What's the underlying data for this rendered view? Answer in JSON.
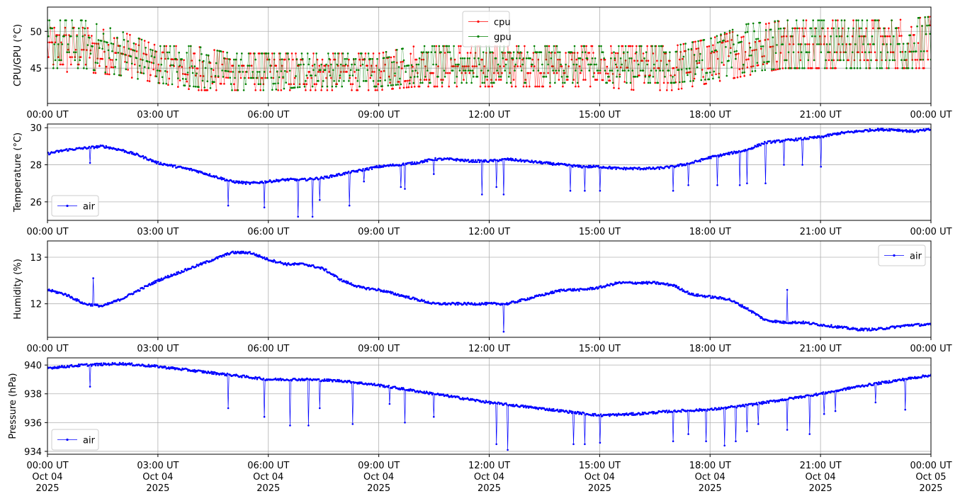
{
  "chart_data": [
    {
      "type": "line",
      "ylabel": "CPU/GPU (°C)",
      "xlim": [
        "00:00 UT",
        "00:00 UT"
      ],
      "ylim": [
        40.2,
        53.3
      ],
      "yticks": [
        45,
        50
      ],
      "grid": true,
      "legend_position": "upper center",
      "x_tick_labels": [
        "00:00 UT",
        "03:00 UT",
        "06:00 UT",
        "09:00 UT",
        "12:00 UT",
        "15:00 UT",
        "18:00 UT",
        "21:00 UT",
        "00:00 UT"
      ],
      "series": [
        {
          "name": "cpu",
          "color": "#ff0000",
          "x_hours": [
            0,
            1,
            2,
            3,
            4,
            5,
            6,
            7,
            8,
            9,
            10,
            11,
            12,
            13,
            14,
            15,
            16,
            17,
            18,
            19,
            20,
            21,
            22,
            23,
            24
          ],
          "low": [
            44.5,
            44.5,
            44.0,
            43.0,
            42.0,
            42.0,
            42.0,
            42.0,
            42.0,
            42.0,
            42.5,
            42.5,
            42.5,
            42.5,
            42.5,
            42.5,
            42.0,
            42.0,
            43.0,
            44.0,
            45.0,
            45.0,
            45.0,
            45.0,
            45.0
          ],
          "high": [
            50.5,
            50.5,
            50.0,
            48.0,
            48.0,
            47.0,
            47.0,
            47.0,
            47.0,
            47.0,
            48.0,
            48.0,
            48.0,
            48.0,
            48.0,
            48.0,
            48.0,
            48.0,
            49.0,
            50.5,
            51.5,
            51.5,
            51.5,
            51.5,
            52.0
          ]
        },
        {
          "name": "gpu",
          "color": "#008000",
          "x_hours": [
            0,
            1,
            2,
            3,
            4,
            5,
            6,
            7,
            8,
            9,
            10,
            11,
            12,
            13,
            14,
            15,
            16,
            17,
            18,
            19,
            20,
            21,
            22,
            23,
            24
          ],
          "low": [
            45.0,
            45.0,
            44.0,
            43.0,
            42.5,
            42.0,
            42.0,
            42.5,
            42.5,
            42.5,
            43.0,
            43.0,
            43.0,
            43.0,
            43.0,
            43.0,
            43.0,
            43.0,
            43.5,
            44.5,
            45.0,
            45.0,
            45.0,
            45.0,
            45.0
          ],
          "high": [
            51.5,
            51.5,
            50.0,
            48.0,
            48.0,
            47.0,
            47.0,
            47.0,
            47.0,
            47.0,
            48.0,
            48.0,
            48.0,
            48.0,
            48.0,
            48.0,
            48.0,
            48.0,
            49.0,
            51.0,
            51.5,
            51.5,
            51.5,
            51.5,
            52.0
          ]
        }
      ]
    },
    {
      "type": "line",
      "ylabel": "Temperature (°C)",
      "ylim": [
        25.0,
        30.2
      ],
      "yticks": [
        26,
        28,
        30
      ],
      "grid": true,
      "legend_position": "lower left",
      "x_tick_labels": [
        "00:00 UT",
        "03:00 UT",
        "06:00 UT",
        "09:00 UT",
        "12:00 UT",
        "15:00 UT",
        "18:00 UT",
        "21:00 UT",
        "00:00 UT"
      ],
      "series": [
        {
          "name": "air",
          "color": "#0000ff",
          "x_hours": [
            0,
            0.5,
            1,
            1.5,
            2,
            2.5,
            3,
            3.5,
            4,
            4.5,
            5,
            5.5,
            6,
            6.5,
            7,
            7.5,
            8,
            8.5,
            9,
            9.5,
            10,
            10.5,
            11,
            11.5,
            12,
            12.5,
            13,
            13.5,
            14,
            14.5,
            15,
            15.5,
            16,
            16.5,
            17,
            17.5,
            18,
            18.5,
            19,
            19.5,
            20,
            20.5,
            21,
            21.5,
            22,
            22.5,
            23,
            23.5,
            24
          ],
          "values": [
            28.6,
            28.8,
            28.9,
            29.0,
            28.8,
            28.5,
            28.1,
            27.9,
            27.7,
            27.4,
            27.1,
            27.0,
            27.1,
            27.2,
            27.2,
            27.3,
            27.5,
            27.7,
            27.9,
            28.0,
            28.1,
            28.3,
            28.3,
            28.2,
            28.2,
            28.3,
            28.2,
            28.1,
            28.0,
            27.9,
            27.9,
            27.8,
            27.8,
            27.8,
            27.9,
            28.1,
            28.4,
            28.6,
            28.8,
            29.2,
            29.3,
            29.4,
            29.5,
            29.7,
            29.8,
            29.9,
            29.9,
            29.8,
            29.9
          ],
          "spikes_x_hours": [
            1.15,
            4.9,
            5.9,
            6.8,
            7.2,
            7.4,
            8.2,
            8.6,
            9.6,
            9.7,
            10.5,
            11.8,
            12.2,
            12.4,
            14.2,
            14.6,
            15.0,
            17.0,
            17.4,
            18.2,
            18.8,
            19.0,
            19.5,
            20.0,
            20.5,
            21.0
          ],
          "spikes_values": [
            28.1,
            25.8,
            25.7,
            25.2,
            25.2,
            26.1,
            25.8,
            27.1,
            26.8,
            26.7,
            27.5,
            26.4,
            26.8,
            26.4,
            26.6,
            26.6,
            26.6,
            26.6,
            26.9,
            26.9,
            26.9,
            27.0,
            27.0,
            28.0,
            28.0,
            27.9
          ]
        }
      ]
    },
    {
      "type": "line",
      "ylabel": "Humidity (%)",
      "ylim": [
        11.28,
        13.35
      ],
      "yticks": [
        12,
        13
      ],
      "grid": true,
      "legend_position": "upper right",
      "x_tick_labels": [
        "00:00 UT",
        "03:00 UT",
        "06:00 UT",
        "09:00 UT",
        "12:00 UT",
        "15:00 UT",
        "18:00 UT",
        "21:00 UT",
        "00:00 UT"
      ],
      "series": [
        {
          "name": "air",
          "color": "#0000ff",
          "x_hours": [
            0,
            0.5,
            1,
            1.5,
            2,
            2.5,
            3,
            3.5,
            4,
            4.5,
            5,
            5.5,
            6,
            6.5,
            7,
            7.5,
            8,
            8.5,
            9,
            9.5,
            10,
            10.5,
            11,
            11.5,
            12,
            12.5,
            13,
            13.5,
            14,
            14.5,
            15,
            15.5,
            16,
            16.5,
            17,
            17.5,
            18,
            18.5,
            19,
            19.5,
            20,
            20.5,
            21,
            21.5,
            22,
            22.5,
            23,
            23.5,
            24
          ],
          "values": [
            12.3,
            12.2,
            12.0,
            11.95,
            12.1,
            12.3,
            12.5,
            12.65,
            12.8,
            12.95,
            13.1,
            13.1,
            12.95,
            12.85,
            12.85,
            12.75,
            12.5,
            12.35,
            12.3,
            12.2,
            12.1,
            12.0,
            12.0,
            12.0,
            12.0,
            12.0,
            12.1,
            12.2,
            12.3,
            12.3,
            12.35,
            12.45,
            12.45,
            12.45,
            12.4,
            12.2,
            12.15,
            12.1,
            11.9,
            11.65,
            11.6,
            11.6,
            11.55,
            11.5,
            11.45,
            11.45,
            11.5,
            11.55,
            11.55
          ],
          "spikes_x_hours": [
            1.25,
            12.4,
            20.1
          ],
          "spikes_values": [
            12.55,
            11.4,
            12.3
          ]
        }
      ]
    },
    {
      "type": "line",
      "ylabel": "Pressure (hPa)",
      "ylim": [
        933.8,
        940.5
      ],
      "yticks": [
        934,
        936,
        938,
        940
      ],
      "grid": true,
      "legend_position": "lower left",
      "x_tick_labels": [
        "00:00 UT\nOct 04\n2025",
        "03:00 UT\nOct 04\n2025",
        "06:00 UT\nOct 04\n2025",
        "09:00 UT\nOct 04\n2025",
        "12:00 UT\nOct 04\n2025",
        "15:00 UT\nOct 04\n2025",
        "18:00 UT\nOct 04\n2025",
        "21:00 UT\nOct 04\n2025",
        "00:00 UT\nOct 05\n2025"
      ],
      "series": [
        {
          "name": "air",
          "color": "#0000ff",
          "x_hours": [
            0,
            1,
            2,
            3,
            4,
            5,
            6,
            7,
            8,
            9,
            10,
            11,
            12,
            13,
            14,
            15,
            16,
            17,
            18,
            19,
            20,
            21,
            22,
            23,
            24
          ],
          "values": [
            939.8,
            940.0,
            940.1,
            939.9,
            939.6,
            939.3,
            939.0,
            939.0,
            938.9,
            938.6,
            938.2,
            937.8,
            937.4,
            937.1,
            936.8,
            936.5,
            936.6,
            936.8,
            936.9,
            937.2,
            937.6,
            938.0,
            938.5,
            938.9,
            939.3
          ],
          "spikes_x_hours": [
            1.15,
            4.9,
            5.9,
            6.6,
            7.1,
            7.4,
            8.3,
            9.3,
            9.7,
            10.5,
            12.2,
            12.5,
            14.3,
            14.6,
            15.0,
            17.0,
            17.4,
            17.9,
            18.4,
            18.7,
            19.0,
            19.3,
            20.1,
            20.7,
            21.1,
            21.4,
            22.5,
            23.3
          ],
          "spikes_values": [
            938.5,
            937.0,
            936.4,
            935.8,
            935.8,
            937.0,
            935.9,
            937.3,
            936.0,
            936.4,
            934.5,
            934.1,
            934.5,
            934.5,
            934.6,
            934.7,
            935.2,
            934.7,
            934.4,
            934.7,
            935.4,
            935.9,
            935.5,
            935.2,
            936.6,
            936.8,
            937.4,
            936.9
          ]
        }
      ]
    }
  ]
}
